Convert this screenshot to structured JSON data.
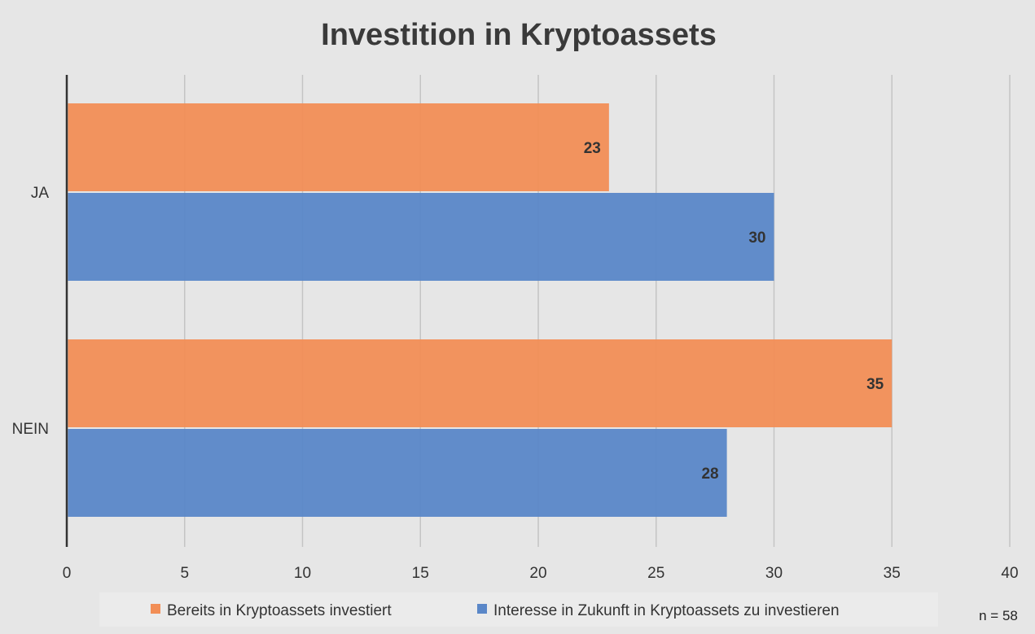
{
  "chart_data": {
    "type": "bar",
    "orientation": "horizontal",
    "title": "Investition in Kryptoassets",
    "categories": [
      "JA",
      "NEIN"
    ],
    "series": [
      {
        "name": "Bereits in Kryptoassets investiert",
        "color": "#f28e56",
        "values": [
          23,
          35
        ]
      },
      {
        "name": "Interesse in Zukunft in Kryptoassets zu investieren",
        "color": "#5a87c8",
        "values": [
          30,
          28
        ]
      }
    ],
    "xlim": [
      0,
      40
    ],
    "xticks": [
      0,
      5,
      10,
      15,
      20,
      25,
      30,
      35,
      40
    ],
    "grid": true,
    "legend_position": "bottom",
    "data_labels": true,
    "annotation": "n = 58"
  }
}
